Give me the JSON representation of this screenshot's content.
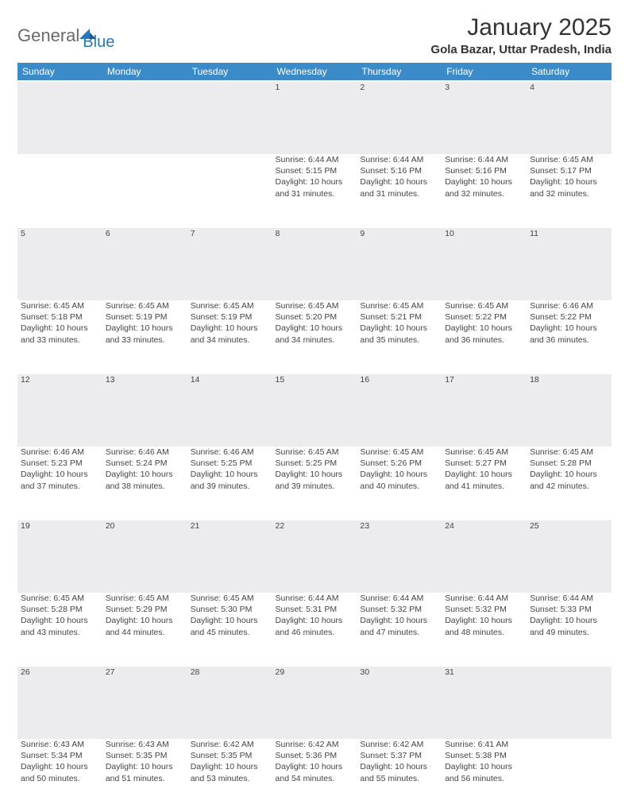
{
  "logo": {
    "general": "General",
    "blue": "Blue"
  },
  "title": "January 2025",
  "location": "Gola Bazar, Uttar Pradesh, India",
  "colors": {
    "header_bg": "#3b8bc9",
    "header_text": "#ffffff",
    "daynum_bg": "#ececee",
    "text": "#444444",
    "logo_gray": "#6a6a6a",
    "logo_blue": "#2677bb"
  },
  "weekdays": [
    "Sunday",
    "Monday",
    "Tuesday",
    "Wednesday",
    "Thursday",
    "Friday",
    "Saturday"
  ],
  "weeks": [
    {
      "nums": [
        "",
        "",
        "",
        "1",
        "2",
        "3",
        "4"
      ],
      "cells": [
        null,
        null,
        null,
        {
          "sunrise": "Sunrise: 6:44 AM",
          "sunset": "Sunset: 5:15 PM",
          "day1": "Daylight: 10 hours",
          "day2": "and 31 minutes."
        },
        {
          "sunrise": "Sunrise: 6:44 AM",
          "sunset": "Sunset: 5:16 PM",
          "day1": "Daylight: 10 hours",
          "day2": "and 31 minutes."
        },
        {
          "sunrise": "Sunrise: 6:44 AM",
          "sunset": "Sunset: 5:16 PM",
          "day1": "Daylight: 10 hours",
          "day2": "and 32 minutes."
        },
        {
          "sunrise": "Sunrise: 6:45 AM",
          "sunset": "Sunset: 5:17 PM",
          "day1": "Daylight: 10 hours",
          "day2": "and 32 minutes."
        }
      ]
    },
    {
      "nums": [
        "5",
        "6",
        "7",
        "8",
        "9",
        "10",
        "11"
      ],
      "cells": [
        {
          "sunrise": "Sunrise: 6:45 AM",
          "sunset": "Sunset: 5:18 PM",
          "day1": "Daylight: 10 hours",
          "day2": "and 33 minutes."
        },
        {
          "sunrise": "Sunrise: 6:45 AM",
          "sunset": "Sunset: 5:19 PM",
          "day1": "Daylight: 10 hours",
          "day2": "and 33 minutes."
        },
        {
          "sunrise": "Sunrise: 6:45 AM",
          "sunset": "Sunset: 5:19 PM",
          "day1": "Daylight: 10 hours",
          "day2": "and 34 minutes."
        },
        {
          "sunrise": "Sunrise: 6:45 AM",
          "sunset": "Sunset: 5:20 PM",
          "day1": "Daylight: 10 hours",
          "day2": "and 34 minutes."
        },
        {
          "sunrise": "Sunrise: 6:45 AM",
          "sunset": "Sunset: 5:21 PM",
          "day1": "Daylight: 10 hours",
          "day2": "and 35 minutes."
        },
        {
          "sunrise": "Sunrise: 6:45 AM",
          "sunset": "Sunset: 5:22 PM",
          "day1": "Daylight: 10 hours",
          "day2": "and 36 minutes."
        },
        {
          "sunrise": "Sunrise: 6:46 AM",
          "sunset": "Sunset: 5:22 PM",
          "day1": "Daylight: 10 hours",
          "day2": "and 36 minutes."
        }
      ]
    },
    {
      "nums": [
        "12",
        "13",
        "14",
        "15",
        "16",
        "17",
        "18"
      ],
      "cells": [
        {
          "sunrise": "Sunrise: 6:46 AM",
          "sunset": "Sunset: 5:23 PM",
          "day1": "Daylight: 10 hours",
          "day2": "and 37 minutes."
        },
        {
          "sunrise": "Sunrise: 6:46 AM",
          "sunset": "Sunset: 5:24 PM",
          "day1": "Daylight: 10 hours",
          "day2": "and 38 minutes."
        },
        {
          "sunrise": "Sunrise: 6:46 AM",
          "sunset": "Sunset: 5:25 PM",
          "day1": "Daylight: 10 hours",
          "day2": "and 39 minutes."
        },
        {
          "sunrise": "Sunrise: 6:45 AM",
          "sunset": "Sunset: 5:25 PM",
          "day1": "Daylight: 10 hours",
          "day2": "and 39 minutes."
        },
        {
          "sunrise": "Sunrise: 6:45 AM",
          "sunset": "Sunset: 5:26 PM",
          "day1": "Daylight: 10 hours",
          "day2": "and 40 minutes."
        },
        {
          "sunrise": "Sunrise: 6:45 AM",
          "sunset": "Sunset: 5:27 PM",
          "day1": "Daylight: 10 hours",
          "day2": "and 41 minutes."
        },
        {
          "sunrise": "Sunrise: 6:45 AM",
          "sunset": "Sunset: 5:28 PM",
          "day1": "Daylight: 10 hours",
          "day2": "and 42 minutes."
        }
      ]
    },
    {
      "nums": [
        "19",
        "20",
        "21",
        "22",
        "23",
        "24",
        "25"
      ],
      "cells": [
        {
          "sunrise": "Sunrise: 6:45 AM",
          "sunset": "Sunset: 5:28 PM",
          "day1": "Daylight: 10 hours",
          "day2": "and 43 minutes."
        },
        {
          "sunrise": "Sunrise: 6:45 AM",
          "sunset": "Sunset: 5:29 PM",
          "day1": "Daylight: 10 hours",
          "day2": "and 44 minutes."
        },
        {
          "sunrise": "Sunrise: 6:45 AM",
          "sunset": "Sunset: 5:30 PM",
          "day1": "Daylight: 10 hours",
          "day2": "and 45 minutes."
        },
        {
          "sunrise": "Sunrise: 6:44 AM",
          "sunset": "Sunset: 5:31 PM",
          "day1": "Daylight: 10 hours",
          "day2": "and 46 minutes."
        },
        {
          "sunrise": "Sunrise: 6:44 AM",
          "sunset": "Sunset: 5:32 PM",
          "day1": "Daylight: 10 hours",
          "day2": "and 47 minutes."
        },
        {
          "sunrise": "Sunrise: 6:44 AM",
          "sunset": "Sunset: 5:32 PM",
          "day1": "Daylight: 10 hours",
          "day2": "and 48 minutes."
        },
        {
          "sunrise": "Sunrise: 6:44 AM",
          "sunset": "Sunset: 5:33 PM",
          "day1": "Daylight: 10 hours",
          "day2": "and 49 minutes."
        }
      ]
    },
    {
      "nums": [
        "26",
        "27",
        "28",
        "29",
        "30",
        "31",
        ""
      ],
      "cells": [
        {
          "sunrise": "Sunrise: 6:43 AM",
          "sunset": "Sunset: 5:34 PM",
          "day1": "Daylight: 10 hours",
          "day2": "and 50 minutes."
        },
        {
          "sunrise": "Sunrise: 6:43 AM",
          "sunset": "Sunset: 5:35 PM",
          "day1": "Daylight: 10 hours",
          "day2": "and 51 minutes."
        },
        {
          "sunrise": "Sunrise: 6:42 AM",
          "sunset": "Sunset: 5:35 PM",
          "day1": "Daylight: 10 hours",
          "day2": "and 53 minutes."
        },
        {
          "sunrise": "Sunrise: 6:42 AM",
          "sunset": "Sunset: 5:36 PM",
          "day1": "Daylight: 10 hours",
          "day2": "and 54 minutes."
        },
        {
          "sunrise": "Sunrise: 6:42 AM",
          "sunset": "Sunset: 5:37 PM",
          "day1": "Daylight: 10 hours",
          "day2": "and 55 minutes."
        },
        {
          "sunrise": "Sunrise: 6:41 AM",
          "sunset": "Sunset: 5:38 PM",
          "day1": "Daylight: 10 hours",
          "day2": "and 56 minutes."
        },
        null
      ]
    }
  ]
}
